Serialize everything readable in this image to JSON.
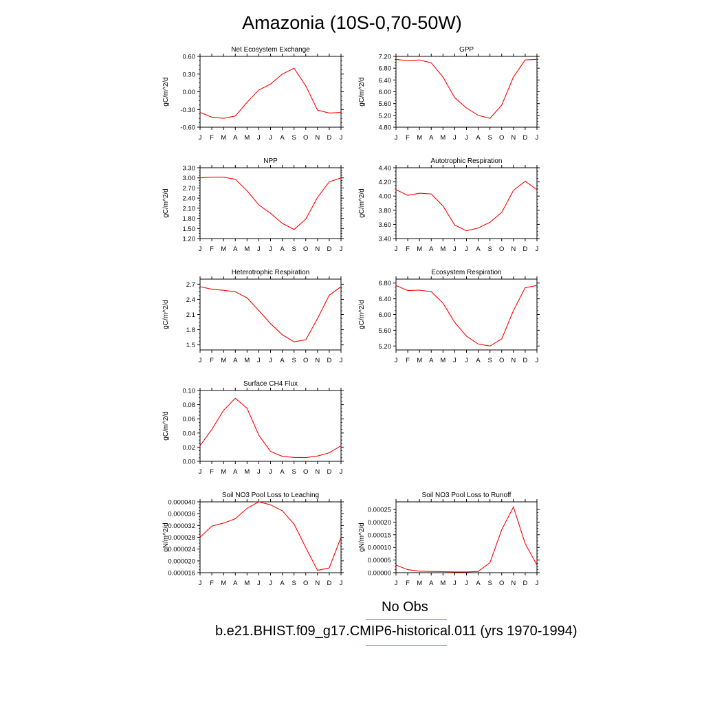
{
  "page": {
    "title": "Amazonia (10S-0,70-50W)"
  },
  "legend": {
    "items": [
      {
        "label": "No Obs",
        "color": "#6b6bff"
      },
      {
        "label": "b.e21.BHIST.f09_g17.CMIP6-historical.011 (yrs 1970-1994)",
        "color": "#ff4a4a"
      }
    ]
  },
  "chart_data": [
    {
      "type": "line",
      "title": "Net Ecosystem Exchange",
      "ylabel": "gC/m^2/d",
      "x": [
        "J",
        "F",
        "M",
        "A",
        "M",
        "J",
        "J",
        "A",
        "S",
        "O",
        "N",
        "D",
        "J"
      ],
      "ylim": [
        -0.6,
        0.6
      ],
      "yticks": [
        "0.60",
        "0.30",
        "0.00",
        "-0.30",
        "-0.60"
      ],
      "series": [
        {
          "color": "#ff0000",
          "values": [
            -0.35,
            -0.43,
            -0.45,
            -0.41,
            -0.18,
            0.03,
            0.13,
            0.3,
            0.4,
            0.1,
            -0.31,
            -0.36,
            -0.35
          ]
        }
      ]
    },
    {
      "type": "line",
      "title": "GPP",
      "ylabel": "gC/m^2/d",
      "x": [
        "J",
        "F",
        "M",
        "A",
        "M",
        "J",
        "J",
        "A",
        "S",
        "O",
        "N",
        "D",
        "J"
      ],
      "ylim": [
        4.8,
        7.2
      ],
      "yticks": [
        "7.20",
        "6.80",
        "6.40",
        "6.00",
        "5.60",
        "5.20",
        "4.80"
      ],
      "series": [
        {
          "color": "#ff0000",
          "values": [
            7.1,
            7.05,
            7.08,
            6.98,
            6.5,
            5.8,
            5.45,
            5.2,
            5.1,
            5.55,
            6.5,
            7.08,
            7.1
          ]
        }
      ]
    },
    {
      "type": "line",
      "title": "NPP",
      "ylabel": "gC/m^2/d",
      "x": [
        "J",
        "F",
        "M",
        "A",
        "M",
        "J",
        "J",
        "A",
        "S",
        "O",
        "N",
        "D",
        "J"
      ],
      "ylim": [
        1.2,
        3.3
      ],
      "yticks": [
        "3.30",
        "3.00",
        "2.70",
        "2.40",
        "2.10",
        "1.80",
        "1.50",
        "1.20"
      ],
      "series": [
        {
          "color": "#ff0000",
          "values": [
            3.0,
            3.02,
            3.02,
            2.96,
            2.62,
            2.2,
            1.95,
            1.65,
            1.47,
            1.78,
            2.42,
            2.88,
            3.0
          ]
        }
      ]
    },
    {
      "type": "line",
      "title": "Autotrophic Respiration",
      "ylabel": "gC/m^2/d",
      "x": [
        "J",
        "F",
        "M",
        "A",
        "M",
        "J",
        "J",
        "A",
        "S",
        "O",
        "N",
        "D",
        "J"
      ],
      "ylim": [
        3.4,
        4.4
      ],
      "yticks": [
        "4.40",
        "4.20",
        "4.00",
        "3.80",
        "3.60",
        "3.40"
      ],
      "series": [
        {
          "color": "#ff0000",
          "values": [
            4.09,
            4.01,
            4.04,
            4.03,
            3.86,
            3.59,
            3.51,
            3.55,
            3.63,
            3.77,
            4.08,
            4.21,
            4.09
          ]
        }
      ]
    },
    {
      "type": "line",
      "title": "Heterotrophic Respiration",
      "ylabel": "gC/m^2/d",
      "x": [
        "J",
        "F",
        "M",
        "A",
        "M",
        "J",
        "J",
        "A",
        "S",
        "O",
        "N",
        "D",
        "J"
      ],
      "ylim": [
        1.4,
        2.8
      ],
      "yticks": [
        "2.7",
        "2.4",
        "2.1",
        "1.8",
        "1.5"
      ],
      "ytick_values": [
        2.7,
        2.4,
        2.1,
        1.8,
        1.5
      ],
      "series": [
        {
          "color": "#ff0000",
          "values": [
            2.65,
            2.6,
            2.58,
            2.55,
            2.43,
            2.18,
            1.92,
            1.7,
            1.56,
            1.6,
            2.02,
            2.48,
            2.65
          ]
        }
      ]
    },
    {
      "type": "line",
      "title": "Ecosystem Respiration",
      "ylabel": "gC/m^2/d",
      "x": [
        "J",
        "F",
        "M",
        "A",
        "M",
        "J",
        "J",
        "A",
        "S",
        "O",
        "N",
        "D",
        "J"
      ],
      "ylim": [
        5.1,
        6.9
      ],
      "yticks": [
        "6.80",
        "6.40",
        "6.00",
        "5.60",
        "5.20"
      ],
      "ytick_values": [
        6.8,
        6.4,
        6.0,
        5.6,
        5.2
      ],
      "series": [
        {
          "color": "#ff0000",
          "values": [
            6.74,
            6.61,
            6.62,
            6.58,
            6.29,
            5.8,
            5.45,
            5.25,
            5.2,
            5.38,
            6.1,
            6.68,
            6.74
          ]
        }
      ]
    },
    {
      "type": "line",
      "title": "Surface CH4 Flux",
      "ylabel": "gC/m^2/d",
      "x": [
        "J",
        "F",
        "M",
        "A",
        "M",
        "J",
        "J",
        "A",
        "S",
        "O",
        "N",
        "D",
        "J"
      ],
      "ylim": [
        0.0,
        0.1
      ],
      "yticks": [
        "0.10",
        "0.08",
        "0.06",
        "0.04",
        "0.02",
        "0.00"
      ],
      "series": [
        {
          "color": "#ff0000",
          "values": [
            0.022,
            0.045,
            0.072,
            0.089,
            0.075,
            0.037,
            0.014,
            0.007,
            0.0055,
            0.0052,
            0.0075,
            0.012,
            0.022
          ]
        }
      ]
    },
    {
      "type": "line",
      "title": "Soil NO3 Pool Loss to Leaching",
      "ylabel": "gN/m^2/d",
      "x": [
        "J",
        "F",
        "M",
        "A",
        "M",
        "J",
        "J",
        "A",
        "S",
        "O",
        "N",
        "D",
        "J"
      ],
      "ylim": [
        1.6e-05,
        4e-05
      ],
      "yticks": [
        "0.000040",
        "0.000036",
        "0.000032",
        "0.000028",
        "0.000024",
        "0.000020",
        "0.000016"
      ],
      "series": [
        {
          "color": "#ff0000",
          "values": [
            2.8e-05,
            3.18e-05,
            3.28e-05,
            3.43e-05,
            3.78e-05,
            4e-05,
            3.9e-05,
            3.7e-05,
            3.25e-05,
            2.45e-05,
            1.68e-05,
            1.76e-05,
            2.8e-05
          ]
        }
      ]
    },
    {
      "type": "line",
      "title": "Soil NO3 Pool Loss to Runoff",
      "ylabel": "gN/m^2/d",
      "x": [
        "J",
        "F",
        "M",
        "A",
        "M",
        "J",
        "J",
        "A",
        "S",
        "O",
        "N",
        "D",
        "J"
      ],
      "ylim": [
        0.0,
        0.00028
      ],
      "yticks": [
        "0.00025",
        "0.00020",
        "0.00015",
        "0.00010",
        "0.00005",
        "0.00000"
      ],
      "ytick_values": [
        0.00025,
        0.0002,
        0.00015,
        0.0001,
        5e-05,
        0.0
      ],
      "series": [
        {
          "color": "#ff0000",
          "values": [
            3e-05,
            1.2e-05,
            6e-06,
            5e-06,
            4e-06,
            3e-06,
            3e-06,
            5e-06,
            4e-05,
            0.00017,
            0.00026,
            0.000115,
            3e-05
          ]
        }
      ]
    }
  ]
}
